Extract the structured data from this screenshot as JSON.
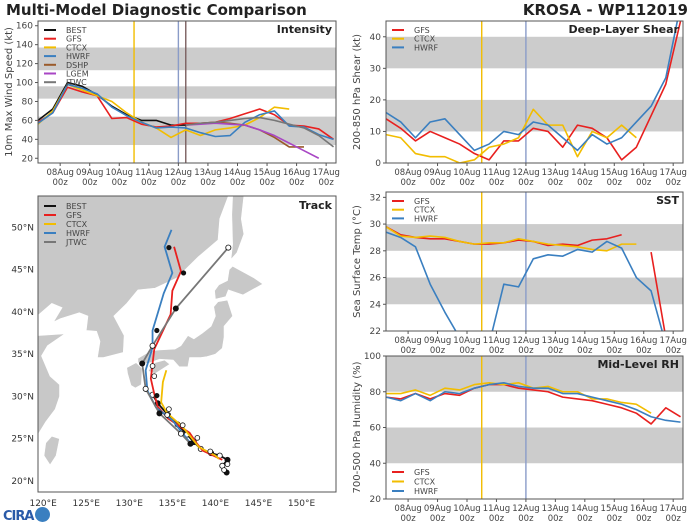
{
  "header": {
    "title": "Multi-Model Diagnostic Comparison",
    "storm": "KROSA - WP112019",
    "logo": "CIRA"
  },
  "colors": {
    "BEST": "#111111",
    "GFS": "#e8201f",
    "CTCX": "#f2bd00",
    "HWRF": "#3a7fc0",
    "DSHP": "#9a5a2a",
    "LGEM": "#a846c4",
    "JTWC": "#777777",
    "band": "#cccccc",
    "vline_ctcx": "#f2bd00",
    "vline_hwrf": "#8a9cc8",
    "vline_dshp": "#7b5f5f"
  },
  "chart_data": [
    {
      "type": "line",
      "id": "intensity",
      "title": "Intensity",
      "ylabel": "10m Max Wind Speed (kt)",
      "ylim": [
        15,
        165
      ],
      "yticks": [
        20,
        40,
        60,
        80,
        100,
        120,
        140,
        160
      ],
      "xlim": [
        "07Aug 06z",
        "17Aug 08z"
      ],
      "xticks": [
        "08Aug 00z",
        "09Aug 00z",
        "10Aug 00z",
        "11Aug 00z",
        "12Aug 00z",
        "13Aug 00z",
        "14Aug 00z",
        "15Aug 00z",
        "16Aug 00z",
        "17Aug 00z"
      ],
      "bands": [
        [
          34,
          64
        ],
        [
          83,
          96
        ],
        [
          113,
          137
        ]
      ],
      "vlines": [
        {
          "x": "10Aug 12z",
          "color": "vline_ctcx"
        },
        {
          "x": "12Aug 00z",
          "color": "vline_hwrf"
        },
        {
          "x": "12Aug 06z",
          "color": "vline_dshp"
        }
      ],
      "legend": "top-left",
      "times": [
        "07Aug 06z",
        "07Aug 18z",
        "08Aug 06z",
        "08Aug 18z",
        "09Aug 06z",
        "09Aug 18z",
        "10Aug 06z",
        "10Aug 18z",
        "11Aug 06z",
        "11Aug 18z",
        "12Aug 06z",
        "12Aug 18z",
        "13Aug 06z",
        "13Aug 18z",
        "14Aug 06z",
        "14Aug 18z",
        "15Aug 06z",
        "15Aug 18z",
        "16Aug 06z",
        "16Aug 18z",
        "17Aug 06z"
      ],
      "series": [
        {
          "name": "BEST",
          "values": [
            60,
            72,
            100,
            96,
            87,
            75,
            66,
            60,
            60,
            55,
            55,
            null,
            null,
            null,
            null,
            null,
            null,
            null,
            null,
            null,
            null
          ]
        },
        {
          "name": "GFS",
          "values": [
            58,
            68,
            95,
            90,
            86,
            62,
            63,
            56,
            53,
            54,
            57,
            57,
            58,
            62,
            67,
            72,
            66,
            55,
            54,
            51,
            40
          ]
        },
        {
          "name": "CTCX",
          "values": [
            56,
            70,
            98,
            92,
            86,
            80,
            68,
            58,
            52,
            42,
            50,
            44,
            50,
            52,
            55,
            63,
            74,
            72,
            null,
            null,
            null
          ]
        },
        {
          "name": "HWRF",
          "values": [
            57,
            68,
            98,
            94,
            88,
            74,
            65,
            58,
            52,
            53,
            52,
            47,
            43,
            44,
            58,
            66,
            70,
            54,
            53,
            45,
            40
          ]
        },
        {
          "name": "DSHP",
          "values": [
            null,
            null,
            null,
            null,
            null,
            null,
            null,
            null,
            null,
            null,
            55,
            57,
            58,
            57,
            55,
            50,
            42,
            32,
            32,
            null,
            null
          ]
        },
        {
          "name": "LGEM",
          "values": [
            null,
            null,
            null,
            null,
            null,
            null,
            null,
            null,
            null,
            null,
            55,
            56,
            57,
            56,
            55,
            50,
            44,
            36,
            28,
            20,
            null
          ]
        },
        {
          "name": "JTWC",
          "values": [
            null,
            null,
            null,
            null,
            null,
            null,
            null,
            null,
            null,
            null,
            55,
            57,
            58,
            60,
            62,
            63,
            60,
            56,
            52,
            44,
            32
          ]
        }
      ]
    },
    {
      "type": "line",
      "id": "shear",
      "title": "Deep-Layer Shear",
      "ylabel": "200-850 hPa Shear (kt)",
      "ylim": [
        0,
        45
      ],
      "yticks": [
        0,
        10,
        20,
        30,
        40
      ],
      "xlim": [
        "07Aug 06z",
        "17Aug 08z"
      ],
      "xticks": [
        "08Aug 00z",
        "09Aug 00z",
        "10Aug 00z",
        "11Aug 00z",
        "12Aug 00z",
        "13Aug 00z",
        "14Aug 00z",
        "15Aug 00z",
        "16Aug 00z",
        "17Aug 00z"
      ],
      "bands": [
        [
          10,
          20
        ],
        [
          30,
          40
        ]
      ],
      "vlines": [
        {
          "x": "10Aug 12z",
          "color": "vline_ctcx"
        },
        {
          "x": "12Aug 00z",
          "color": "vline_hwrf"
        }
      ],
      "legend": "top-left",
      "times": [
        "07Aug 06z",
        "07Aug 18z",
        "08Aug 06z",
        "08Aug 18z",
        "09Aug 06z",
        "09Aug 18z",
        "10Aug 06z",
        "10Aug 18z",
        "11Aug 06z",
        "11Aug 18z",
        "12Aug 06z",
        "12Aug 18z",
        "13Aug 06z",
        "13Aug 18z",
        "14Aug 06z",
        "14Aug 18z",
        "15Aug 06z",
        "15Aug 18z",
        "16Aug 06z",
        "16Aug 18z",
        "17Aug 06z"
      ],
      "series": [
        {
          "name": "GFS",
          "values": [
            14,
            11,
            7,
            10,
            8,
            6,
            3,
            1,
            7,
            7,
            11,
            10,
            5,
            12,
            11,
            8,
            1,
            5,
            15,
            25,
            45
          ]
        },
        {
          "name": "CTCX",
          "values": [
            9,
            8,
            3,
            2,
            2,
            0,
            1,
            5,
            6,
            8,
            17,
            12,
            12,
            2,
            10,
            8,
            12,
            8,
            null,
            null,
            null
          ]
        },
        {
          "name": "HWRF",
          "values": [
            16,
            13,
            8,
            13,
            14,
            9,
            4,
            6,
            10,
            9,
            13,
            12,
            8,
            4,
            9,
            6,
            8,
            13,
            18,
            27,
            50
          ]
        }
      ]
    },
    {
      "type": "line",
      "id": "sst",
      "title": "SST",
      "ylabel": "Sea Surface Temp (°C)",
      "ylim": [
        22,
        32.4
      ],
      "yticks": [
        22,
        24,
        26,
        28,
        30,
        32
      ],
      "xlim": [
        "07Aug 06z",
        "17Aug 08z"
      ],
      "xticks": [
        "08Aug 00z",
        "09Aug 00z",
        "10Aug 00z",
        "11Aug 00z",
        "12Aug 00z",
        "13Aug 00z",
        "14Aug 00z",
        "15Aug 00z",
        "16Aug 00z",
        "17Aug 00z"
      ],
      "bands": [
        [
          24,
          26
        ],
        [
          28,
          30
        ]
      ],
      "vlines": [
        {
          "x": "10Aug 12z",
          "color": "vline_ctcx"
        },
        {
          "x": "12Aug 00z",
          "color": "vline_hwrf"
        }
      ],
      "legend": "top-left",
      "times": [
        "07Aug 06z",
        "07Aug 18z",
        "08Aug 06z",
        "08Aug 18z",
        "09Aug 06z",
        "09Aug 18z",
        "10Aug 06z",
        "10Aug 18z",
        "11Aug 06z",
        "11Aug 18z",
        "12Aug 06z",
        "12Aug 18z",
        "13Aug 06z",
        "13Aug 18z",
        "14Aug 06z",
        "14Aug 18z",
        "15Aug 06z",
        "15Aug 18z",
        "16Aug 06z",
        "16Aug 18z",
        "17Aug 06z"
      ],
      "series": [
        {
          "name": "GFS",
          "values": [
            29.8,
            29.2,
            29.0,
            28.9,
            28.9,
            28.7,
            28.5,
            28.5,
            28.6,
            28.8,
            28.7,
            28.4,
            28.5,
            28.4,
            28.8,
            28.9,
            29.2,
            null,
            27.9,
            21.5,
            null
          ]
        },
        {
          "name": "CTCX",
          "values": [
            29.8,
            29.1,
            29.0,
            29.1,
            29.0,
            28.7,
            28.5,
            28.6,
            28.6,
            28.9,
            28.7,
            28.5,
            28.4,
            28.3,
            28.1,
            28.0,
            28.5,
            28.5,
            null,
            null,
            null
          ]
        },
        {
          "name": "HWRF",
          "values": [
            29.4,
            29.0,
            28.3,
            25.5,
            23.4,
            21.5,
            21.0,
            21.0,
            25.5,
            25.3,
            27.4,
            27.7,
            27.6,
            28.1,
            27.9,
            28.7,
            28.2,
            26.0,
            25.0,
            21.0,
            null
          ]
        }
      ]
    },
    {
      "type": "line",
      "id": "rh",
      "title": "Mid-Level RH",
      "ylabel": "700-500 hPa Humidity (%)",
      "ylim": [
        20,
        100
      ],
      "yticks": [
        20,
        40,
        60,
        80,
        100
      ],
      "xlim": [
        "07Aug 06z",
        "17Aug 08z"
      ],
      "xticks": [
        "08Aug 00z",
        "09Aug 00z",
        "10Aug 00z",
        "11Aug 00z",
        "12Aug 00z",
        "13Aug 00z",
        "14Aug 00z",
        "15Aug 00z",
        "16Aug 00z",
        "17Aug 00z"
      ],
      "bands": [
        [
          40,
          60
        ],
        [
          80,
          100
        ]
      ],
      "vlines": [
        {
          "x": "10Aug 12z",
          "color": "vline_ctcx"
        },
        {
          "x": "12Aug 00z",
          "color": "vline_hwrf"
        }
      ],
      "legend": "bottom-left",
      "times": [
        "07Aug 06z",
        "07Aug 18z",
        "08Aug 06z",
        "08Aug 18z",
        "09Aug 06z",
        "09Aug 18z",
        "10Aug 06z",
        "10Aug 18z",
        "11Aug 06z",
        "11Aug 18z",
        "12Aug 06z",
        "12Aug 18z",
        "13Aug 06z",
        "13Aug 18z",
        "14Aug 06z",
        "14Aug 18z",
        "15Aug 06z",
        "15Aug 18z",
        "16Aug 06z",
        "16Aug 18z",
        "17Aug 06z"
      ],
      "series": [
        {
          "name": "GFS",
          "values": [
            77,
            76,
            79,
            76,
            79,
            78,
            82,
            84,
            84,
            82,
            81,
            80,
            77,
            76,
            75,
            73,
            71,
            68,
            62,
            71,
            66
          ]
        },
        {
          "name": "CTCX",
          "values": [
            79,
            79,
            81,
            78,
            82,
            81,
            84,
            85,
            84,
            85,
            82,
            83,
            80,
            80,
            76,
            76,
            74,
            73,
            68,
            null,
            null
          ]
        },
        {
          "name": "HWRF",
          "values": [
            77,
            75,
            79,
            75,
            80,
            79,
            82,
            84,
            85,
            83,
            82,
            82,
            79,
            79,
            77,
            75,
            73,
            70,
            66,
            64,
            63
          ]
        }
      ]
    },
    {
      "type": "scatter",
      "id": "track",
      "title": "Track",
      "xlim": [
        119.4,
        154
      ],
      "ylim": [
        18.7,
        53.7
      ],
      "xticks": [
        120,
        125,
        130,
        135,
        140,
        145,
        150
      ],
      "xtick_labels": [
        "120°E",
        "125°E",
        "130°E",
        "135°E",
        "140°E",
        "145°E",
        "150°E"
      ],
      "yticks": [
        20,
        25,
        30,
        35,
        40,
        45,
        50
      ],
      "ytick_labels": [
        "20°N",
        "25°N",
        "30°N",
        "35°N",
        "40°N",
        "45°N",
        "50°N"
      ],
      "legend": "top-left",
      "series": [
        {
          "name": "BEST",
          "points": [
            [
              141.3,
              21.0
            ],
            [
              140.8,
              21.8
            ],
            [
              141.4,
              22.5
            ],
            [
              140.5,
              23.0
            ],
            [
              139.5,
              23.3
            ],
            [
              138.3,
              23.8
            ],
            [
              137.5,
              24.6
            ],
            [
              136.7,
              25.5
            ],
            [
              135.6,
              26.7
            ],
            [
              134.5,
              27.8
            ],
            [
              133.3,
              29.2
            ],
            [
              132.7,
              30.2
            ]
          ]
        },
        {
          "name": "GFS",
          "points": [
            [
              140.8,
              22.5
            ],
            [
              138.5,
              23.6
            ],
            [
              137.8,
              24.5
            ],
            [
              137.0,
              25.7
            ],
            [
              135.8,
              26.5
            ],
            [
              134.5,
              27.4
            ],
            [
              133.3,
              28.8
            ],
            [
              132.9,
              30.3
            ],
            [
              132.5,
              32.1
            ],
            [
              132.9,
              35.6
            ],
            [
              134.8,
              39.7
            ],
            [
              135.0,
              42.5
            ],
            [
              136.0,
              44.8
            ],
            [
              135.2,
              47.7
            ]
          ]
        },
        {
          "name": "CTCX",
          "points": [
            [
              140.4,
              22.6
            ],
            [
              140.0,
              23.0
            ],
            [
              138.1,
              24.0
            ],
            [
              137.3,
              25.0
            ],
            [
              136.2,
              26.4
            ],
            [
              134.4,
              28.0
            ],
            [
              133.7,
              29.3
            ],
            [
              133.9,
              31.7
            ],
            [
              134.3,
              33.1
            ]
          ]
        },
        {
          "name": "HWRF",
          "points": [
            [
              137.3,
              24.2
            ],
            [
              135.0,
              27.2
            ],
            [
              133.1,
              28.7
            ],
            [
              132.1,
              30.7
            ],
            [
              131.9,
              33.1
            ],
            [
              132.7,
              35.8
            ],
            [
              132.7,
              37.8
            ],
            [
              134.0,
              42.2
            ],
            [
              135.0,
              44.6
            ],
            [
              134.1,
              47.7
            ],
            [
              134.9,
              49.7
            ]
          ]
        },
        {
          "name": "JTWC",
          "points": [
            [
              137.1,
              24.4
            ],
            [
              136.0,
              25.6
            ],
            [
              133.5,
              28.0
            ],
            [
              131.9,
              30.9
            ],
            [
              131.5,
              33.9
            ],
            [
              132.7,
              36.0
            ],
            [
              135.4,
              40.4
            ],
            [
              141.5,
              47.6
            ]
          ]
        }
      ]
    }
  ]
}
